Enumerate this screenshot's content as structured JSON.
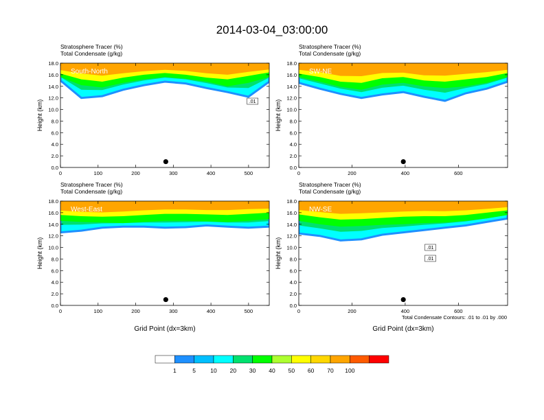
{
  "figure": {
    "title": "2014-03-04_03:00:00",
    "colorbar": {
      "colors": [
        "#ffffff",
        "#1e90ff",
        "#00bfff",
        "#00ffff",
        "#00e16e",
        "#00ff00",
        "#adff2f",
        "#ffff00",
        "#ffd700",
        "#ffa500",
        "#ff5a00",
        "#ff0000"
      ],
      "labels": [
        "1",
        "5",
        "10",
        "20",
        "30",
        "40",
        "50",
        "60",
        "70",
        "100"
      ]
    },
    "contour_note": "Total Condensate Contours: .01 to .01 by .000"
  },
  "chart_data": [
    {
      "type": "heatmap",
      "title_line1": "Stratosphere Tracer   (%)",
      "title_line2": "Total Condensate   (g/kg)",
      "label": "South-North",
      "ylabel": "Height (km)",
      "xlabel": "",
      "xlim": [
        0,
        555
      ],
      "ylim": [
        0,
        18
      ],
      "xticks": [
        0,
        100,
        200,
        300,
        400,
        500
      ],
      "yticks": [
        "0.0",
        "2.0",
        "4.0",
        "6.0",
        "8.0",
        "10.0",
        "12.0",
        "14.0",
        "16.0",
        "18.0"
      ],
      "marker": {
        "x": 280,
        "y": 1.0
      },
      "bands": {
        "red": [
          17.4,
          17.2,
          16.9,
          17.0,
          17.2,
          17.4,
          17.3,
          17.0,
          16.8,
          17.2,
          17.4
        ],
        "yellow": [
          16.2,
          15.2,
          14.8,
          15.5,
          16.0,
          16.3,
          16.0,
          15.5,
          15.2,
          15.8,
          16.4
        ],
        "green": [
          15.6,
          14.2,
          13.8,
          14.6,
          15.2,
          15.6,
          15.3,
          14.8,
          14.0,
          14.6,
          15.6
        ],
        "blue": [
          15.0,
          12.0,
          12.3,
          13.4,
          14.2,
          14.8,
          14.5,
          13.7,
          13.0,
          12.2,
          14.8
        ]
      },
      "contour_labels": [
        ".01"
      ]
    },
    {
      "type": "heatmap",
      "title_line1": "Stratosphere Tracer   (%)",
      "title_line2": "Total Condensate   (g/kg)",
      "label": "SW-NE",
      "ylabel": "Height (km)",
      "xlabel": "",
      "xlim": [
        0,
        785
      ],
      "ylim": [
        0,
        18
      ],
      "xticks": [
        0,
        200,
        400,
        600
      ],
      "yticks": [
        "0.0",
        "2.0",
        "4.0",
        "6.0",
        "8.0",
        "10.0",
        "12.0",
        "14.0",
        "16.0",
        "18.0"
      ],
      "marker": {
        "x": 393,
        "y": 1.0
      },
      "bands": {
        "red": [
          17.5,
          17.3,
          16.8,
          16.9,
          17.2,
          17.1,
          16.8,
          16.9,
          17.1,
          17.3,
          17.4
        ],
        "yellow": [
          16.2,
          15.6,
          14.8,
          14.6,
          15.4,
          15.6,
          15.0,
          14.8,
          15.2,
          15.6,
          16.3
        ],
        "green": [
          15.6,
          14.8,
          13.9,
          13.4,
          14.3,
          14.6,
          14.0,
          13.7,
          14.0,
          14.6,
          15.6
        ],
        "blue": [
          14.6,
          13.6,
          12.7,
          12.0,
          12.6,
          13.0,
          12.2,
          11.5,
          12.8,
          13.6,
          14.8
        ]
      },
      "contour_labels": []
    },
    {
      "type": "heatmap",
      "title_line1": "Stratosphere Tracer   (%)",
      "title_line2": "Total Condensate   (g/kg)",
      "label": "West-East",
      "ylabel": "Height (km)",
      "xlabel": "Grid Point (dx=3km)",
      "xlim": [
        0,
        555
      ],
      "ylim": [
        0,
        18
      ],
      "xticks": [
        0,
        100,
        200,
        300,
        400,
        500
      ],
      "yticks": [
        "0.0",
        "2.0",
        "4.0",
        "6.0",
        "8.0",
        "10.0",
        "12.0",
        "14.0",
        "16.0",
        "18.0"
      ],
      "marker": {
        "x": 280,
        "y": 1.0
      },
      "bands": {
        "red": [
          17.1,
          16.9,
          16.8,
          17.0,
          17.2,
          17.3,
          17.3,
          17.2,
          17.3,
          17.4,
          17.4
        ],
        "yellow": [
          15.6,
          15.4,
          15.3,
          15.4,
          15.6,
          15.8,
          15.8,
          15.7,
          15.6,
          15.8,
          16.0
        ],
        "green": [
          14.6,
          14.4,
          14.3,
          14.2,
          14.4,
          14.6,
          14.6,
          14.5,
          14.4,
          14.6,
          14.9
        ],
        "blue": [
          12.6,
          12.9,
          13.4,
          13.6,
          13.6,
          13.4,
          13.5,
          13.8,
          13.6,
          13.4,
          13.6
        ]
      },
      "contour_labels": []
    },
    {
      "type": "heatmap",
      "title_line1": "Stratosphere Tracer   (%)",
      "title_line2": "Total Condensate   (g/kg)",
      "label": "NW-SE",
      "ylabel": "Height (km)",
      "xlabel": "Grid Point (dx=3km)",
      "xlim": [
        0,
        785
      ],
      "ylim": [
        0,
        18
      ],
      "xticks": [
        0,
        200,
        400,
        600
      ],
      "yticks": [
        "0.0",
        "2.0",
        "4.0",
        "6.0",
        "8.0",
        "10.0",
        "12.0",
        "14.0",
        "16.0",
        "18.0"
      ],
      "marker": {
        "x": 393,
        "y": 1.0
      },
      "bands": {
        "red": [
          17.2,
          17.0,
          16.8,
          16.9,
          17.0,
          17.1,
          17.2,
          17.1,
          17.2,
          17.3,
          17.5
        ],
        "yellow": [
          15.7,
          15.2,
          14.8,
          14.9,
          15.1,
          15.3,
          15.4,
          15.4,
          15.6,
          16.0,
          16.4
        ],
        "green": [
          14.6,
          14.0,
          13.6,
          13.7,
          13.9,
          14.0,
          14.2,
          14.3,
          14.6,
          15.0,
          15.6
        ],
        "blue": [
          12.4,
          12.0,
          11.2,
          11.4,
          12.2,
          12.6,
          13.0,
          13.4,
          13.8,
          14.4,
          15.0
        ]
      },
      "contour_labels": [
        ".01",
        ".01"
      ]
    }
  ]
}
